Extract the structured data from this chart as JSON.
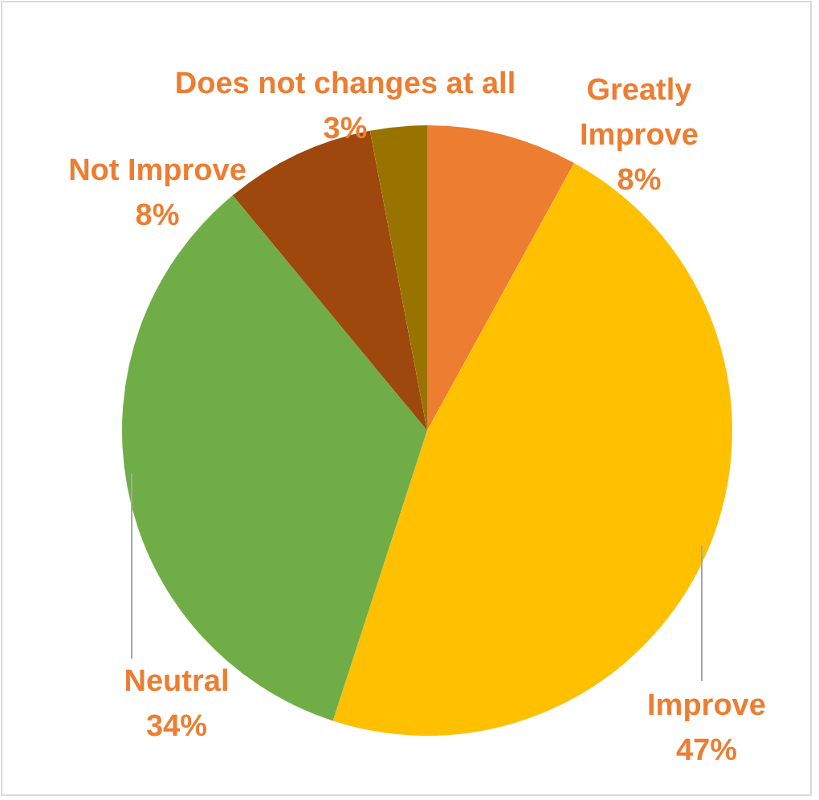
{
  "chart_data": {
    "type": "pie",
    "categories": [
      "Greatly Improve",
      "Improve",
      "Neutral",
      "Not Improve",
      "Does not changes at all"
    ],
    "values": [
      8,
      47,
      34,
      8,
      3
    ],
    "colors": [
      "#ed7d31",
      "#ffc000",
      "#70ad47",
      "#9e480e",
      "#997300"
    ],
    "value_labels": [
      "8%",
      "47%",
      "34%",
      "8%",
      "3%"
    ],
    "legend": false
  }
}
